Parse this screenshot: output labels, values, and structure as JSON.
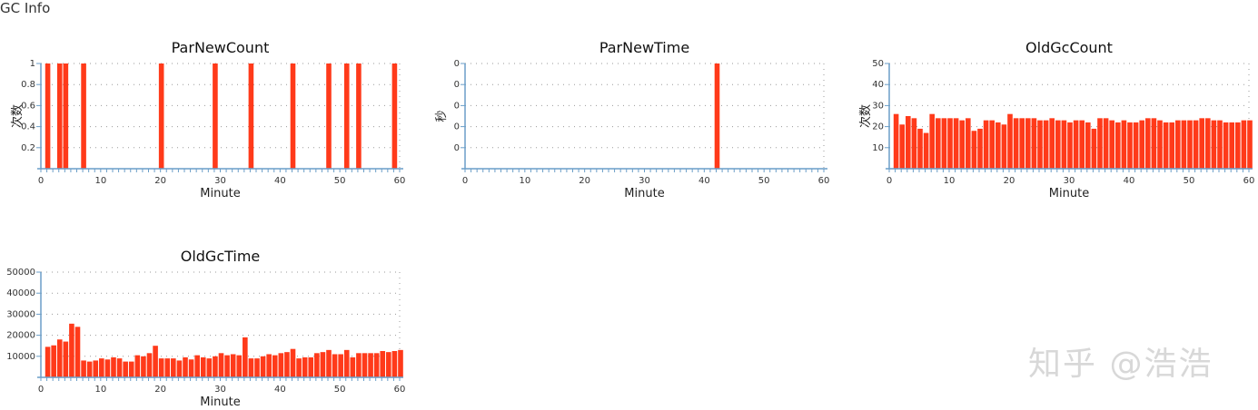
{
  "section_title": "GC Info",
  "watermark": "知乎 @浩浩",
  "colors": {
    "bar": "#ff3a1a",
    "axis": "#6a9ec8",
    "grid": "#9a9a9a"
  },
  "chart_data": [
    {
      "type": "bar",
      "title": "ParNewCount",
      "xlabel": "Minute",
      "ylabel": "次数",
      "xlim": [
        0,
        60
      ],
      "ylim": [
        0,
        1
      ],
      "xticks": [
        "0",
        "10",
        "20",
        "30",
        "40",
        "50",
        "60"
      ],
      "yticks": [
        {
          "v": 0.2,
          "label": "0.2"
        },
        {
          "v": 0.4,
          "label": "0.4"
        },
        {
          "v": 0.6,
          "label": "0.6"
        },
        {
          "v": 0.8,
          "label": "0.8"
        },
        {
          "v": 1,
          "label": "1"
        }
      ],
      "grid": true,
      "x": [
        1,
        3,
        4,
        7,
        20,
        29,
        35,
        42,
        48,
        51,
        53,
        59
      ],
      "values": [
        1,
        1,
        1,
        1,
        1,
        1,
        1,
        1,
        1,
        1,
        1,
        1
      ]
    },
    {
      "type": "bar",
      "title": "ParNewTime",
      "xlabel": "Minute",
      "ylabel": "秒",
      "xlim": [
        0,
        60
      ],
      "ylim": [
        0,
        1
      ],
      "xticks": [
        "0",
        "10",
        "20",
        "30",
        "40",
        "50",
        "60"
      ],
      "yticks": [
        {
          "v": 0.2,
          "label": "0"
        },
        {
          "v": 0.4,
          "label": "0"
        },
        {
          "v": 0.6,
          "label": "0"
        },
        {
          "v": 0.8,
          "label": "0"
        },
        {
          "v": 1,
          "label": "0"
        }
      ],
      "grid": true,
      "x": [
        42
      ],
      "values": [
        1
      ]
    },
    {
      "type": "bar",
      "title": "OldGcCount",
      "xlabel": "Minute",
      "ylabel": "次数",
      "xlim": [
        0,
        60
      ],
      "ylim": [
        0,
        50
      ],
      "xticks": [
        "0",
        "10",
        "20",
        "30",
        "40",
        "50",
        "60"
      ],
      "yticks": [
        {
          "v": 10,
          "label": "10"
        },
        {
          "v": 20,
          "label": "20"
        },
        {
          "v": 30,
          "label": "30"
        },
        {
          "v": 40,
          "label": "40"
        },
        {
          "v": 50,
          "label": "50"
        }
      ],
      "grid": true,
      "x": [
        1,
        2,
        3,
        4,
        5,
        6,
        7,
        8,
        9,
        10,
        11,
        12,
        13,
        14,
        15,
        16,
        17,
        18,
        19,
        20,
        21,
        22,
        23,
        24,
        25,
        26,
        27,
        28,
        29,
        30,
        31,
        32,
        33,
        34,
        35,
        36,
        37,
        38,
        39,
        40,
        41,
        42,
        43,
        44,
        45,
        46,
        47,
        48,
        49,
        50,
        51,
        52,
        53,
        54,
        55,
        56,
        57,
        58,
        59,
        60
      ],
      "values": [
        26,
        21,
        25,
        24,
        19,
        17,
        26,
        24,
        24,
        24,
        24,
        23,
        24,
        18,
        19,
        23,
        23,
        22,
        21,
        26,
        24,
        24,
        24,
        24,
        23,
        23,
        24,
        23,
        23,
        22,
        23,
        23,
        22,
        19,
        24,
        24,
        23,
        22,
        23,
        22,
        22,
        23,
        24,
        24,
        23,
        22,
        22,
        23,
        23,
        23,
        23,
        24,
        24,
        23,
        23,
        22,
        22,
        22,
        23,
        23
      ]
    },
    {
      "type": "bar",
      "title": "OldGcTime",
      "xlabel": "Minute",
      "ylabel": "",
      "xlim": [
        0,
        60
      ],
      "ylim": [
        0,
        50000
      ],
      "xticks": [
        "0",
        "10",
        "20",
        "30",
        "40",
        "50",
        "60"
      ],
      "yticks": [
        {
          "v": 10000,
          "label": "10000"
        },
        {
          "v": 20000,
          "label": "20000"
        },
        {
          "v": 30000,
          "label": "30000"
        },
        {
          "v": 40000,
          "label": "40000"
        },
        {
          "v": 50000,
          "label": "50000"
        }
      ],
      "grid": true,
      "x": [
        1,
        2,
        3,
        4,
        5,
        6,
        7,
        8,
        9,
        10,
        11,
        12,
        13,
        14,
        15,
        16,
        17,
        18,
        19,
        20,
        21,
        22,
        23,
        24,
        25,
        26,
        27,
        28,
        29,
        30,
        31,
        32,
        33,
        34,
        35,
        36,
        37,
        38,
        39,
        40,
        41,
        42,
        43,
        44,
        45,
        46,
        47,
        48,
        49,
        50,
        51,
        52,
        53,
        54,
        55,
        56,
        57,
        58,
        59,
        60
      ],
      "values": [
        14500,
        15200,
        18000,
        17000,
        25500,
        24000,
        8000,
        7500,
        8000,
        9000,
        8500,
        9500,
        9000,
        7500,
        7500,
        10500,
        10000,
        11500,
        15000,
        9000,
        9000,
        9000,
        8000,
        9500,
        8500,
        10500,
        9500,
        9000,
        10000,
        11500,
        10500,
        11000,
        10500,
        19000,
        9000,
        9000,
        10000,
        11000,
        10500,
        11500,
        12000,
        13500,
        9000,
        9500,
        9500,
        11500,
        12000,
        13000,
        11000,
        11000,
        13000,
        9500,
        11500,
        11500,
        11500,
        11500,
        12500,
        12000,
        12500,
        13000
      ]
    }
  ]
}
